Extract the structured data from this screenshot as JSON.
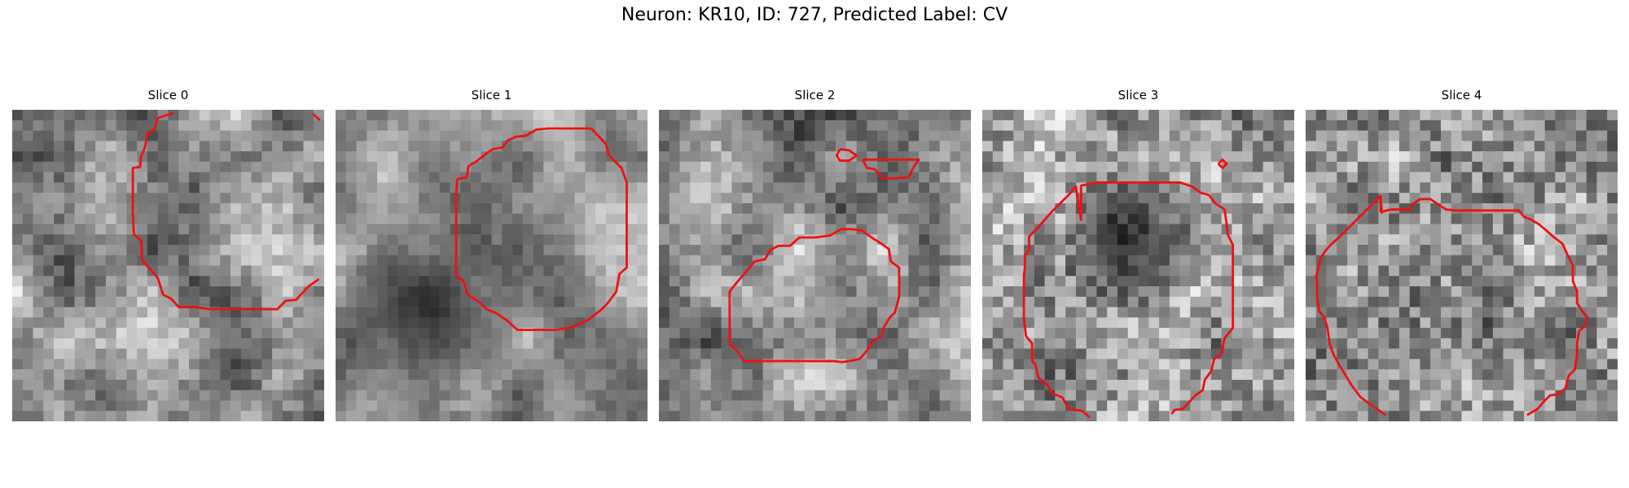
{
  "figure": {
    "title": "Neuron: KR10, ID: 727, Predicted Label: CV"
  },
  "colors": {
    "contour": "#ee1111"
  },
  "panels": [
    {
      "title": "Slice 0",
      "seed": 11,
      "base": "bright",
      "dark_blob": false
    },
    {
      "title": "Slice 1",
      "seed": 23,
      "base": "smooth",
      "dark_blob": true
    },
    {
      "title": "Slice 2",
      "seed": 37,
      "base": "bright",
      "dark_blob": false
    },
    {
      "title": "Slice 3",
      "seed": 41,
      "base": "noisy",
      "dark_blob": true
    },
    {
      "title": "Slice 4",
      "seed": 53,
      "base": "noisy",
      "dark_blob": false
    }
  ]
}
